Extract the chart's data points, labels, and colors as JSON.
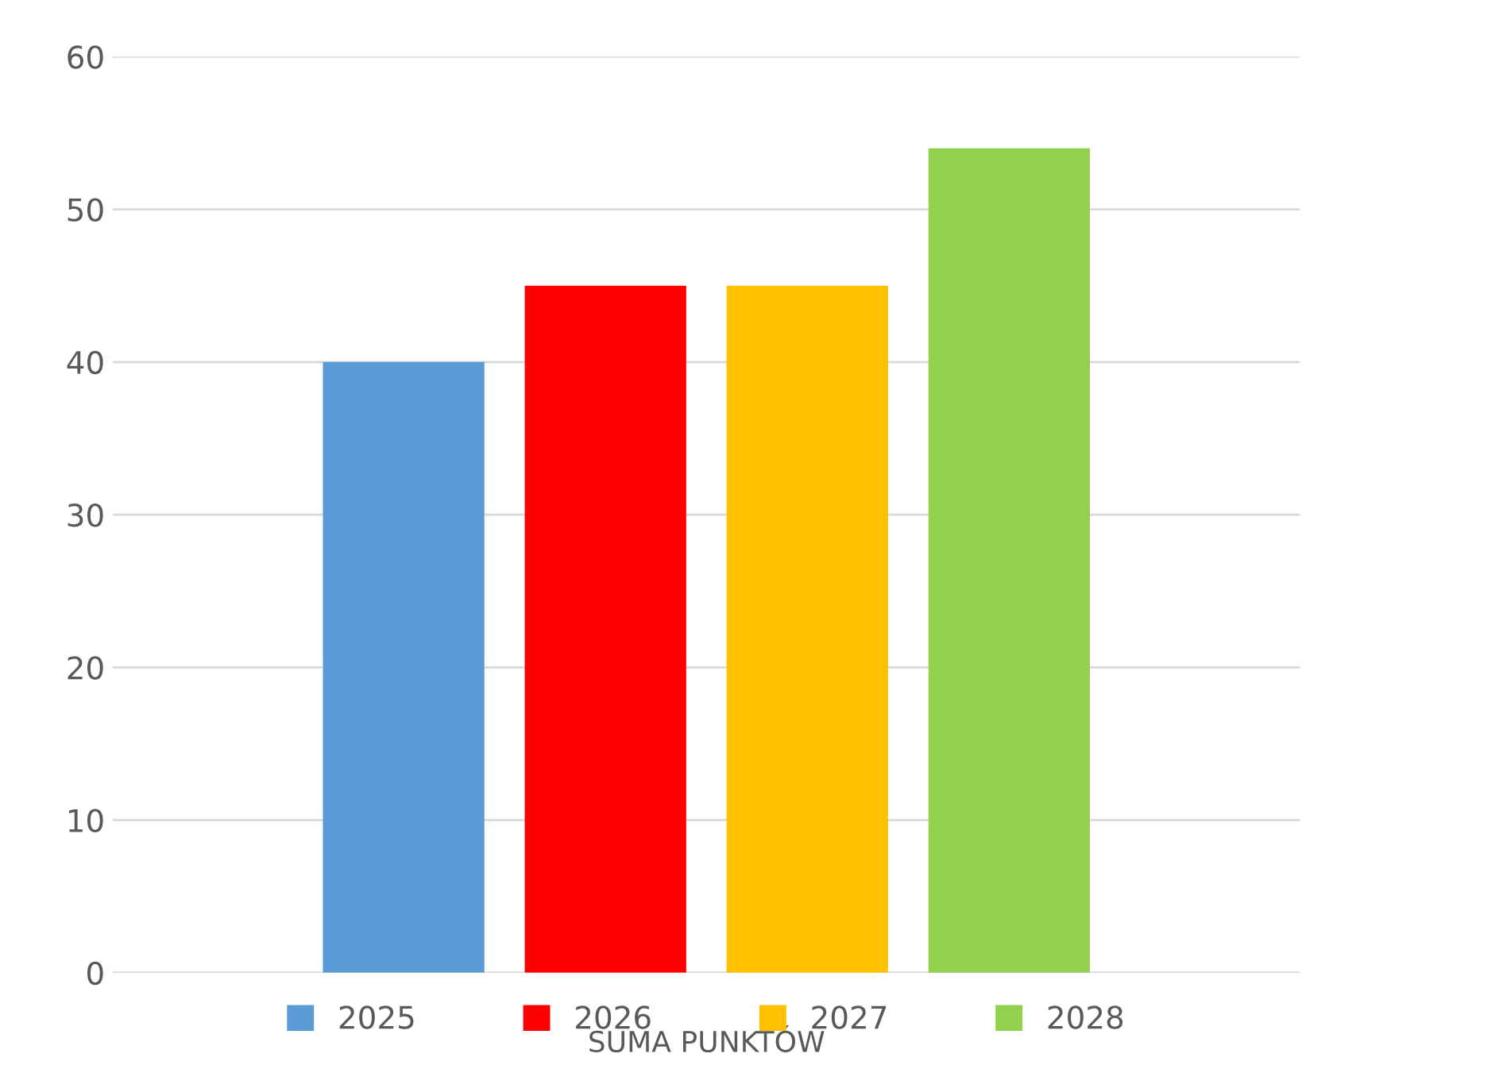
{
  "chart_data": {
    "type": "bar",
    "categories": [
      "SUMA PUNKTÓW"
    ],
    "series": [
      {
        "name": "2025",
        "color": "#5b9bd5",
        "values": [
          40
        ]
      },
      {
        "name": "2026",
        "color": "#ff0000",
        "values": [
          45
        ]
      },
      {
        "name": "2027",
        "color": "#ffc000",
        "values": [
          45
        ]
      },
      {
        "name": "2028",
        "color": "#92d050",
        "values": [
          54
        ]
      }
    ],
    "ylim": [
      0,
      60
    ],
    "yticks": [
      0,
      10,
      20,
      30,
      40,
      50,
      60
    ],
    "grid": "y",
    "legend": "bottom"
  }
}
